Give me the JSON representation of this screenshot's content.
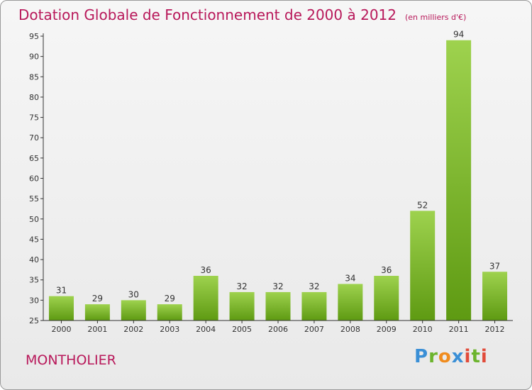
{
  "title": "Dotation Globale de Fonctionnement de 2000 à 2012",
  "unit_note": "(en milliers d'€)",
  "commune": "MONTHOLIER",
  "logo_text": "Proxiti",
  "colors": {
    "title": "#b8185a",
    "bar_light": "#9ed24e",
    "bar_dark": "#5e9a12",
    "axis": "#333333"
  },
  "chart_data": {
    "type": "bar",
    "title": "Dotation Globale de Fonctionnement de 2000 à 2012",
    "subtitle": "(en milliers d'€)",
    "xlabel": "",
    "ylabel": "",
    "categories": [
      "2000",
      "2001",
      "2002",
      "2003",
      "2004",
      "2005",
      "2006",
      "2007",
      "2008",
      "2009",
      "2010",
      "2011",
      "2012"
    ],
    "values": [
      31,
      29,
      30,
      29,
      36,
      32,
      32,
      32,
      34,
      36,
      52,
      94,
      37
    ],
    "ylim": [
      25,
      95
    ],
    "yticks": [
      25,
      30,
      35,
      40,
      45,
      50,
      55,
      60,
      65,
      70,
      75,
      80,
      85,
      90,
      95
    ],
    "grid": false,
    "legend": "none"
  }
}
